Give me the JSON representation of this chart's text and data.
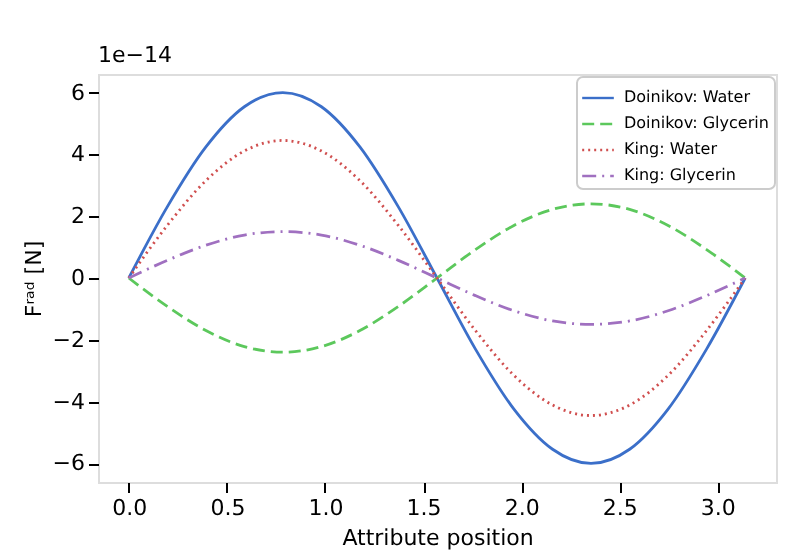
{
  "chart_data": {
    "type": "line",
    "xlabel": "Attribute position",
    "ylabel": "Fʳᵃᵈ [N]",
    "annotations": [
      "1e−14"
    ],
    "xlim": [
      -0.157,
      3.299
    ],
    "ylim": [
      -6.6,
      6.6
    ],
    "xticks": [
      {
        "value": 0,
        "label": "0.0"
      },
      {
        "value": 0.5,
        "label": "0.5"
      },
      {
        "value": 1,
        "label": "1.0"
      },
      {
        "value": 1.5,
        "label": "1.5"
      },
      {
        "value": 2,
        "label": "2.0"
      },
      {
        "value": 2.5,
        "label": "2.5"
      },
      {
        "value": 3,
        "label": "3.0"
      }
    ],
    "yticks": [
      -6,
      -4,
      -2,
      0,
      2,
      4,
      6
    ],
    "x": [
      0,
      0.196,
      0.393,
      0.589,
      0.785,
      0.982,
      1.178,
      1.374,
      1.571,
      1.767,
      1.963,
      2.16,
      2.356,
      2.553,
      2.749,
      2.945,
      3.142
    ],
    "grid": false,
    "legend": "top right",
    "series": [
      {
        "name": "Doinikov: Water",
        "color": "#3b6fc9",
        "line_style": "solid",
        "values": [
          0,
          2.3,
          4.24,
          5.54,
          6,
          5.54,
          4.24,
          2.3,
          0,
          -2.3,
          -4.24,
          -5.54,
          -6,
          -5.54,
          -4.24,
          -2.3,
          0
        ]
      },
      {
        "name": "Doinikov: Glycerin",
        "color": "#5cc85c",
        "line_style": "dashed",
        "values": [
          0,
          -0.92,
          -1.7,
          -2.22,
          -2.4,
          -2.22,
          -1.7,
          -0.92,
          0,
          0.92,
          1.7,
          2.22,
          2.4,
          2.22,
          1.7,
          0.92,
          0
        ]
      },
      {
        "name": "King: Water",
        "color": "#d04f4f",
        "line_style": "dotted",
        "values": [
          0,
          1.7,
          3.15,
          4.11,
          4.45,
          4.11,
          3.15,
          1.7,
          0,
          -1.7,
          -3.15,
          -4.11,
          -4.45,
          -4.11,
          -3.15,
          -1.7,
          0
        ]
      },
      {
        "name": "King: Glycerin",
        "color": "#a070c0",
        "line_style": "dashdot",
        "values": [
          0,
          0.57,
          1.06,
          1.39,
          1.5,
          1.39,
          1.06,
          0.57,
          0,
          -0.57,
          -1.06,
          -1.39,
          -1.5,
          -1.39,
          -1.06,
          -0.57,
          0
        ]
      }
    ]
  }
}
